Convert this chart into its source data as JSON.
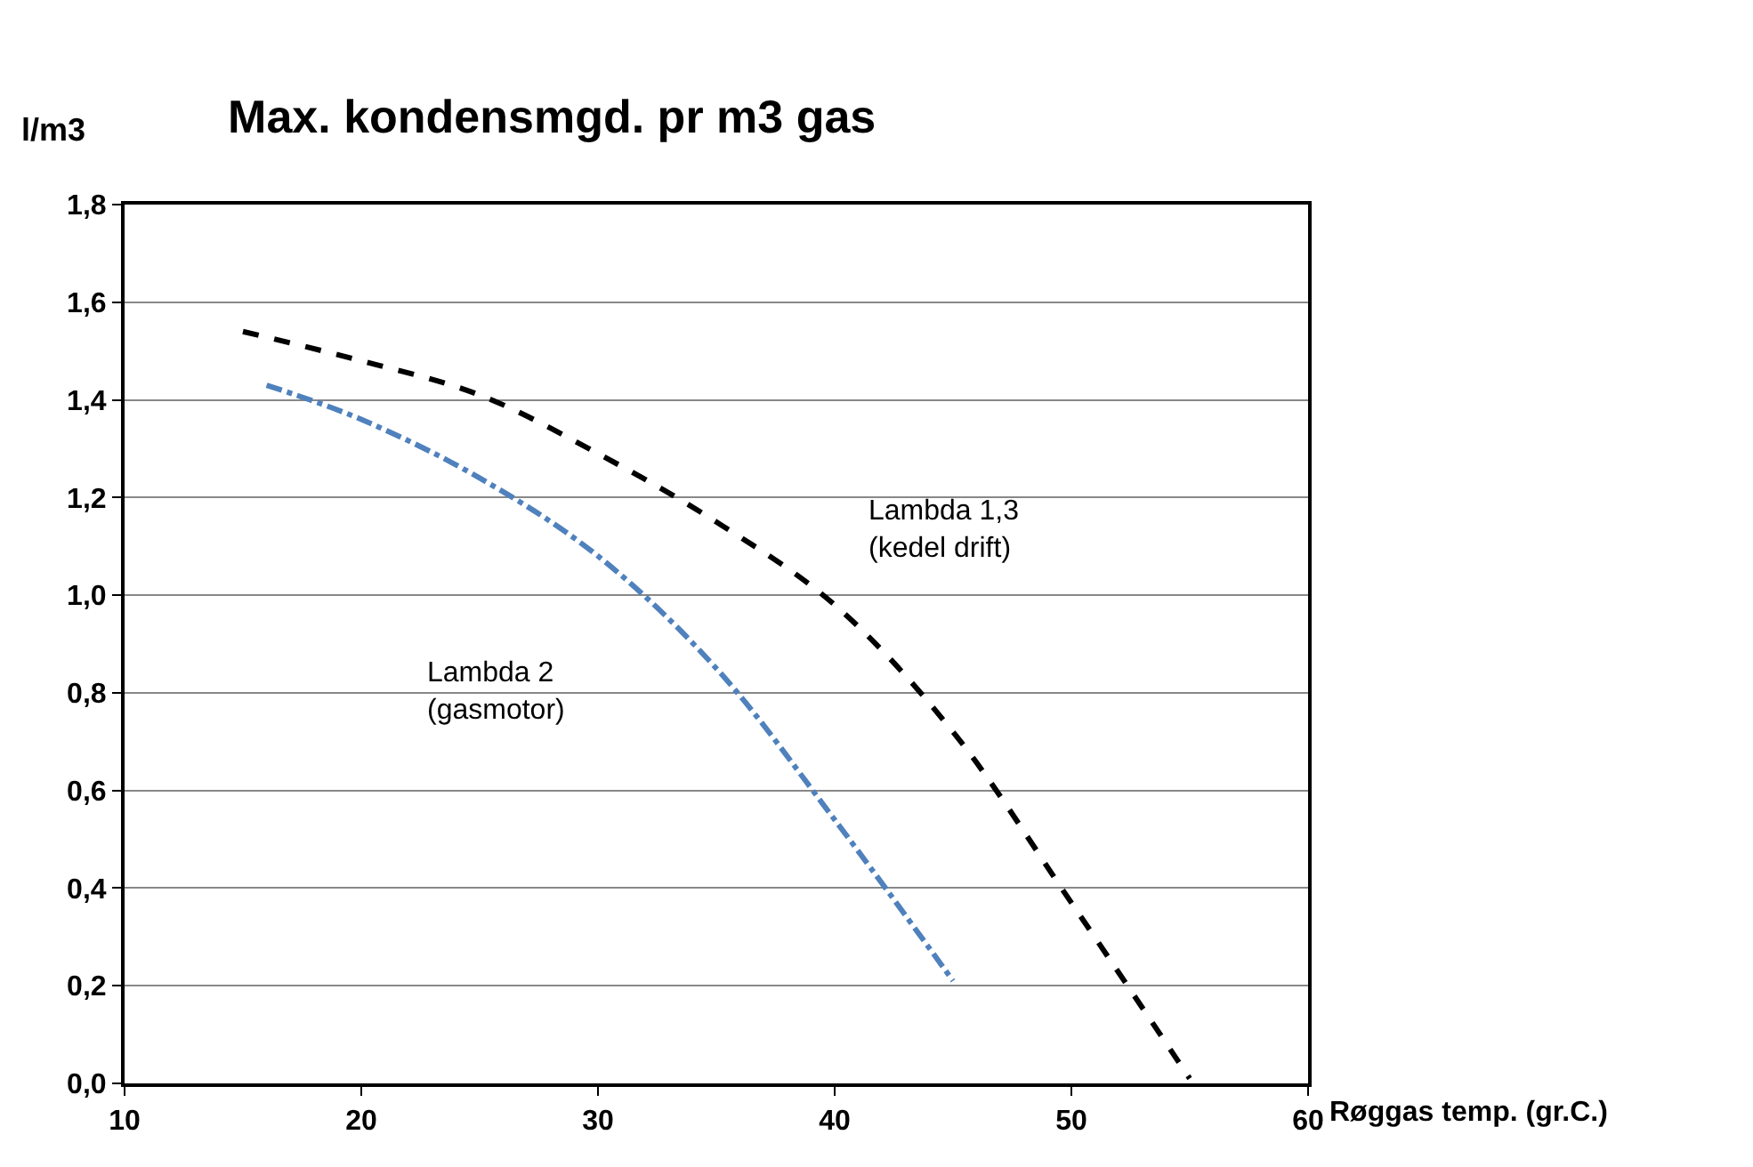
{
  "chart_data": {
    "type": "line",
    "title": "Max. kondensmgd. pr m3 gas",
    "xlabel": "Røggas temp. (gr.C.)",
    "ylabel": "l/m3",
    "xlim": [
      10,
      60
    ],
    "xticks": [
      10,
      20,
      30,
      40,
      50,
      60
    ],
    "ylim": [
      0,
      1.8
    ],
    "yticks": [
      {
        "value": 0,
        "label": "0,0"
      },
      {
        "value": 0.2,
        "label": "0,2"
      },
      {
        "value": 0.4,
        "label": "0,4"
      },
      {
        "value": 0.6,
        "label": "0,6"
      },
      {
        "value": 0.8,
        "label": "0,8"
      },
      {
        "value": 1.0,
        "label": "1,0"
      },
      {
        "value": 1.2,
        "label": "1,2"
      },
      {
        "value": 1.4,
        "label": "1,4"
      },
      {
        "value": 1.6,
        "label": "1,6"
      },
      {
        "value": 1.8,
        "label": "1,8"
      }
    ],
    "grid": "y",
    "legend": false,
    "series": [
      {
        "color": "#000000",
        "line_style": "dashed",
        "x": [
          15,
          20,
          25,
          30,
          35,
          40,
          45,
          50,
          55
        ],
        "values": [
          1.54,
          1.48,
          1.41,
          1.29,
          1.15,
          0.98,
          0.72,
          0.37,
          0.01
        ]
      },
      {
        "color": "#4f81bd",
        "line_style": "dashdot",
        "x": [
          16,
          20,
          25,
          30,
          35,
          40,
          45
        ],
        "values": [
          1.43,
          1.36,
          1.24,
          1.08,
          0.85,
          0.54,
          0.21
        ]
      }
    ],
    "annotations": [
      "Lambda 1,3\n(kedel drift)",
      "Lambda 2\n(gasmotor)"
    ]
  }
}
